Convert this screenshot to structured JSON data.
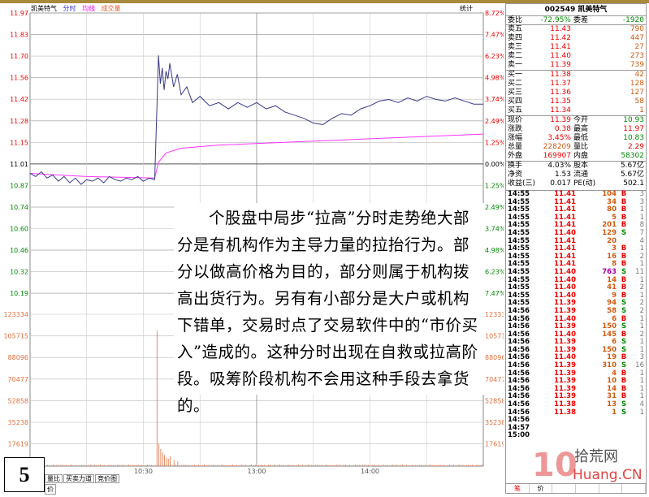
{
  "header": {
    "stock": "凯美特气",
    "tab_fenshi": "分时",
    "tab_junxian": "均线",
    "tab_volume": "成交量",
    "stats": "统计"
  },
  "chart_data": {
    "type": "line",
    "price_ticks": [
      "11.97",
      "11.83",
      "11.70",
      "11.56",
      "11.42",
      "11.28",
      "11.15",
      "11.01",
      "10.87",
      "10.74",
      "10.60",
      "10.46",
      "10.32",
      "10.19"
    ],
    "pct_ticks": [
      "8.72%",
      "7.47%",
      "6.23%",
      "4.98%",
      "3.74%",
      "2.49%",
      "1.25%",
      "0.00%",
      "1.25%",
      "2.49%",
      "3.74%",
      "4.98%",
      "6.23%",
      "7.47%"
    ],
    "volume_ticks": [
      "123334",
      "105715",
      "88096",
      "70477",
      "52858",
      "35238",
      "17619"
    ],
    "time_ticks": [
      "10:30",
      "13:00",
      "14:00"
    ],
    "ylim": [
      10.05,
      11.97
    ],
    "prev_close": 11.01,
    "colors": {
      "price": "#3a3a8a",
      "avg": "#ff33ff",
      "volume": "#e07040",
      "up": "#e00000",
      "down": "#008000"
    },
    "price": [
      [
        0,
        10.95
      ],
      [
        3,
        10.93
      ],
      [
        6,
        10.96
      ],
      [
        9,
        10.92
      ],
      [
        12,
        10.94
      ],
      [
        15,
        10.9
      ],
      [
        18,
        10.93
      ],
      [
        21,
        10.89
      ],
      [
        24,
        10.92
      ],
      [
        27,
        10.88
      ],
      [
        30,
        10.91
      ],
      [
        33,
        10.9
      ],
      [
        36,
        10.92
      ],
      [
        39,
        10.89
      ],
      [
        42,
        10.93
      ],
      [
        45,
        10.91
      ],
      [
        48,
        10.9
      ],
      [
        51,
        10.92
      ],
      [
        54,
        10.91
      ],
      [
        57,
        10.93
      ],
      [
        60,
        10.9
      ],
      [
        63,
        10.92
      ],
      [
        66,
        10.91
      ],
      [
        67,
        11.3
      ],
      [
        68,
        11.7
      ],
      [
        69,
        11.52
      ],
      [
        70,
        11.62
      ],
      [
        71,
        11.48
      ],
      [
        72,
        11.6
      ],
      [
        73,
        11.55
      ],
      [
        74,
        11.65
      ],
      [
        76,
        11.5
      ],
      [
        78,
        11.58
      ],
      [
        80,
        11.45
      ],
      [
        83,
        11.5
      ],
      [
        86,
        11.4
      ],
      [
        90,
        11.44
      ],
      [
        95,
        11.38
      ],
      [
        100,
        11.4
      ],
      [
        105,
        11.36
      ],
      [
        110,
        11.4
      ],
      [
        115,
        11.37
      ],
      [
        120,
        11.4
      ],
      [
        125,
        11.36
      ],
      [
        130,
        11.38
      ],
      [
        135,
        11.34
      ],
      [
        140,
        11.32
      ],
      [
        145,
        11.3
      ],
      [
        150,
        11.27
      ],
      [
        155,
        11.26
      ],
      [
        160,
        11.3
      ],
      [
        165,
        11.33
      ],
      [
        170,
        11.32
      ],
      [
        175,
        11.36
      ],
      [
        180,
        11.38
      ],
      [
        185,
        11.41
      ],
      [
        190,
        11.42
      ],
      [
        195,
        11.4
      ],
      [
        200,
        11.43
      ],
      [
        205,
        11.41
      ],
      [
        210,
        11.44
      ],
      [
        215,
        11.42
      ],
      [
        220,
        11.41
      ],
      [
        225,
        11.43
      ],
      [
        230,
        11.41
      ],
      [
        235,
        11.39
      ],
      [
        240,
        11.39
      ]
    ],
    "avg": [
      [
        0,
        10.95
      ],
      [
        30,
        10.93
      ],
      [
        66,
        10.92
      ],
      [
        68,
        11.02
      ],
      [
        72,
        11.08
      ],
      [
        80,
        11.11
      ],
      [
        100,
        11.13
      ],
      [
        140,
        11.15
      ],
      [
        180,
        11.17
      ],
      [
        220,
        11.19
      ],
      [
        240,
        11.2
      ]
    ],
    "volume": [
      [
        67,
        110000
      ],
      [
        68,
        18000
      ],
      [
        69,
        14000
      ],
      [
        70,
        11000
      ],
      [
        71,
        9000
      ],
      [
        72,
        7000
      ],
      [
        73,
        6000
      ],
      [
        74,
        8000
      ],
      [
        76,
        5000
      ],
      [
        78,
        4000
      ]
    ]
  },
  "overlay_text": "个股盘中局步“拉高”分时走势绝大部分是有机构作为主导力量的拉抬行为。部分以做高价格为目的，部分则属于机构拨高出货行为。另有有小部分是大户或机构下错单，交易时点了交易软件中的“市价买入”造成的。这种分时出现在自救或拉高阶段。吸筹阶段机构不会用这种手段去拿货的。",
  "slide_number": "5",
  "bottom_tabs": [
    "量比",
    "买卖力道",
    "竞价图"
  ],
  "bottom_tab2": "价",
  "panel": {
    "title": "002549 凯美特气",
    "weibi": {
      "label": "委比",
      "value": "-72.95%",
      "label2": "委差",
      "value2": "-1920"
    },
    "sell": [
      {
        "label": "卖五",
        "price": "11.43",
        "vol": "790"
      },
      {
        "label": "卖四",
        "price": "11.42",
        "vol": "447"
      },
      {
        "label": "卖三",
        "price": "11.41",
        "vol": "27"
      },
      {
        "label": "卖二",
        "price": "11.40",
        "vol": "273"
      },
      {
        "label": "卖一",
        "price": "11.39",
        "vol": "739"
      }
    ],
    "buy": [
      {
        "label": "买一",
        "price": "11.38",
        "vol": "42"
      },
      {
        "label": "买二",
        "price": "11.37",
        "vol": "128"
      },
      {
        "label": "买三",
        "price": "11.36",
        "vol": "127"
      },
      {
        "label": "买四",
        "price": "11.35",
        "vol": "58"
      },
      {
        "label": "买五",
        "price": "11.34",
        "vol": "1"
      }
    ],
    "quote": [
      {
        "l1": "现价",
        "v1": "11.39",
        "c1": "red",
        "l2": "今开",
        "v2": "10.93",
        "c2": "grn"
      },
      {
        "l1": "涨跌",
        "v1": "0.38",
        "c1": "red",
        "l2": "最高",
        "v2": "11.97",
        "c2": "red"
      },
      {
        "l1": "涨幅",
        "v1": "3.45%",
        "c1": "red",
        "l2": "最低",
        "v2": "10.83",
        "c2": "grn"
      },
      {
        "l1": "总量",
        "v1": "228209",
        "c1": "org",
        "l2": "量比",
        "v2": "2.29",
        "c2": "red"
      },
      {
        "l1": "外盘",
        "v1": "169907",
        "c1": "red",
        "l2": "内盘",
        "v2": "58302",
        "c2": "grn"
      }
    ],
    "info": [
      {
        "l1": "换手",
        "v1": "4.03%",
        "l2": "股本",
        "v2": "5.67亿"
      },
      {
        "l1": "净资",
        "v1": "1.53",
        "l2": "流通",
        "v2": "5.67亿"
      },
      {
        "l1": "收益(三)",
        "v1": "0.017",
        "l2": "PE(动)",
        "v2": "502.1"
      }
    ],
    "trades": [
      [
        "14:55",
        "11.41",
        "104",
        "B",
        "3"
      ],
      [
        "14:55",
        "11.41",
        "34",
        "B",
        "3"
      ],
      [
        "14:55",
        "11.41",
        "80",
        "B",
        "1"
      ],
      [
        "14:55",
        "11.41",
        "5",
        "B",
        "1"
      ],
      [
        "14:55",
        "11.41",
        "201",
        "B",
        "8"
      ],
      [
        "14:55",
        "11.40",
        "129",
        "S",
        "7"
      ],
      [
        "14:55",
        "11.41",
        "20",
        "",
        "4"
      ],
      [
        "14:55",
        "11.41",
        "3",
        "B",
        "1"
      ],
      [
        "14:55",
        "11.41",
        "16",
        "B",
        "2"
      ],
      [
        "14:55",
        "11.41",
        "8",
        "B",
        "1"
      ],
      [
        "14:55",
        "11.40",
        "763",
        "S",
        "11"
      ],
      [
        "14:55",
        "11.40",
        "14",
        "B",
        "1"
      ],
      [
        "14:55",
        "11.40",
        "41",
        "B",
        "2"
      ],
      [
        "14:55",
        "11.40",
        "9",
        "B",
        "1"
      ],
      [
        "14:55",
        "11.39",
        "94",
        "S",
        "2"
      ],
      [
        "14:56",
        "11.39",
        "58",
        "S",
        "2"
      ],
      [
        "14:56",
        "11.40",
        "6",
        "B",
        "1"
      ],
      [
        "14:56",
        "11.39",
        "150",
        "S",
        "1"
      ],
      [
        "14:56",
        "11.40",
        "145",
        "B",
        "2"
      ],
      [
        "14:56",
        "11.39",
        "6",
        "S",
        "1"
      ],
      [
        "14:56",
        "11.39",
        "150",
        "S",
        "1"
      ],
      [
        "14:56",
        "11.40",
        "19",
        "B",
        "3"
      ],
      [
        "14:56",
        "11.39",
        "310",
        "S",
        "16"
      ],
      [
        "14:56",
        "11.39",
        "4",
        "B",
        "1"
      ],
      [
        "14:56",
        "11.39",
        "10",
        "B",
        "1"
      ],
      [
        "14:56",
        "11.39",
        "14",
        "B",
        "1"
      ],
      [
        "14:56",
        "11.39",
        "31",
        "B",
        "1"
      ],
      [
        "14:56",
        "11.38",
        "13",
        "S",
        "4"
      ],
      [
        "14:56",
        "11.38",
        "1",
        "S",
        "1"
      ],
      [
        "14:56",
        "",
        "",
        "",
        ""
      ],
      [
        "14:57",
        "",
        "",
        "",
        ""
      ],
      [
        "15:00",
        "",
        "",
        "",
        ""
      ]
    ],
    "tabs": [
      "笔",
      "价",
      "",
      ""
    ]
  },
  "watermark": {
    "cn": "拾荒网",
    "en": "Huang.CN"
  }
}
